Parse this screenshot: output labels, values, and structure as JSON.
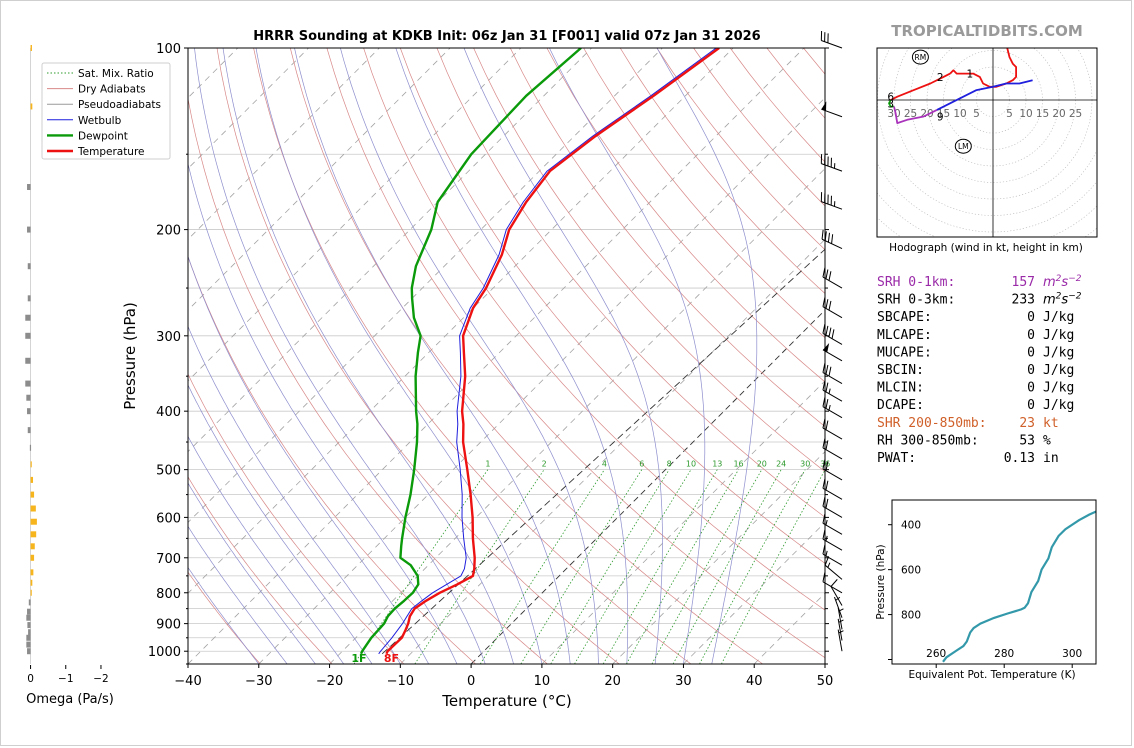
{
  "title": "HRRR Sounding at KDKB Init: 06z Jan 31 [F001] valid 07z Jan 31 2026",
  "watermark": "TROPICALTIDBITS.COM",
  "colors": {
    "temperature": "#ee1111",
    "dewpoint": "#0a9a0a",
    "wetbulb": "#1f1fdd",
    "dry": "#d88888",
    "moist": "#8e8ece",
    "mix": "#2e9a2e",
    "isotherm": "#9a9a9a",
    "omega_pos": "#f7b51d",
    "omega_neg": "#8c8c8c",
    "srh1": "#9a2aa8",
    "shr": "#d0602a",
    "hodo_red": "#ee1111",
    "hodo_blue": "#1f1fdd",
    "hodo_purple": "#aa33bb",
    "hodo_green": "#11aa11",
    "theta": "#3399aa"
  },
  "chart_data": [
    {
      "type": "line",
      "name": "skewt",
      "title": "HRRR Sounding at KDKB Init: 06z Jan 31 [F001] valid 07z Jan 31 2026",
      "xlabel": "Temperature (°C)",
      "ylabel": "Pressure (hPa)",
      "xlim": [
        -40,
        50
      ],
      "ylim": [
        1050,
        100
      ],
      "log_scale_y": true,
      "grid": true,
      "x_ticks": [
        "−40",
        "−30",
        "−20",
        "−10",
        "0",
        "10",
        "20",
        "30",
        "40",
        "50"
      ],
      "y_ticks": [
        "100",
        "200",
        "300",
        "400",
        "500",
        "600",
        "700",
        "800",
        "900",
        "1000"
      ],
      "legend": {
        "position": "top-left",
        "entries": [
          "Sat. Mix. Ratio",
          "Dry Adiabats",
          "Pseudoadiabats",
          "Wetbulb",
          "Dewpoint",
          "Temperature"
        ]
      },
      "mixing_ratio_labels": [
        "1",
        "2",
        "4",
        "6",
        "8",
        "10",
        "13",
        "16",
        "20",
        "24",
        "30",
        "36"
      ],
      "surface_labels": {
        "dewpoint": "1F",
        "temperature": "8F"
      },
      "series": [
        {
          "name": "Temperature",
          "points": [
            [
              1010,
              -13.4
            ],
            [
              1000,
              -13.6
            ],
            [
              950,
              -13.5
            ],
            [
              925,
              -14
            ],
            [
              900,
              -14.6
            ],
            [
              875,
              -15.4
            ],
            [
              850,
              -15.8
            ],
            [
              825,
              -15.3
            ],
            [
              800,
              -14.5
            ],
            [
              775,
              -13.2
            ],
            [
              750,
              -12.2
            ],
            [
              730,
              -13
            ],
            [
              700,
              -14.5
            ],
            [
              650,
              -17.5
            ],
            [
              600,
              -20.5
            ],
            [
              550,
              -24
            ],
            [
              500,
              -28
            ],
            [
              450,
              -32.5
            ],
            [
              420,
              -35
            ],
            [
              400,
              -37
            ],
            [
              350,
              -41.5
            ],
            [
              320,
              -45
            ],
            [
              300,
              -47.5
            ],
            [
              270,
              -50
            ],
            [
              250,
              -51
            ],
            [
              220,
              -53.5
            ],
            [
              200,
              -56
            ],
            [
              180,
              -57.5
            ],
            [
              160,
              -58.5
            ],
            [
              140,
              -57
            ],
            [
              120,
              -54.5
            ],
            [
              100,
              -52
            ]
          ]
        },
        {
          "name": "Dewpoint",
          "points": [
            [
              1010,
              -17
            ],
            [
              1000,
              -17.2
            ],
            [
              950,
              -17.8
            ],
            [
              900,
              -18
            ],
            [
              875,
              -18.5
            ],
            [
              850,
              -18.6
            ],
            [
              825,
              -18.4
            ],
            [
              800,
              -18.3
            ],
            [
              775,
              -18.7
            ],
            [
              750,
              -20
            ],
            [
              720,
              -22.5
            ],
            [
              700,
              -25
            ],
            [
              670,
              -26.5
            ],
            [
              650,
              -27.5
            ],
            [
              600,
              -30
            ],
            [
              550,
              -32.5
            ],
            [
              500,
              -35.5
            ],
            [
              450,
              -39
            ],
            [
              420,
              -41.5
            ],
            [
              400,
              -43.5
            ],
            [
              350,
              -48.5
            ],
            [
              320,
              -51.5
            ],
            [
              300,
              -53.5
            ],
            [
              280,
              -57
            ],
            [
              260,
              -60
            ],
            [
              250,
              -61.5
            ],
            [
              230,
              -64
            ],
            [
              200,
              -67
            ],
            [
              180,
              -70
            ],
            [
              150,
              -72
            ],
            [
              120,
              -72.5
            ],
            [
              100,
              -71.5
            ]
          ]
        },
        {
          "name": "Wetbulb",
          "points": [
            [
              1010,
              -14.5
            ],
            [
              1000,
              -14.6
            ],
            [
              950,
              -14.9
            ],
            [
              900,
              -15.4
            ],
            [
              875,
              -15.8
            ],
            [
              850,
              -16.2
            ],
            [
              825,
              -15.9
            ],
            [
              800,
              -15.5
            ],
            [
              775,
              -14.7
            ],
            [
              750,
              -13.9
            ],
            [
              730,
              -14.4
            ],
            [
              700,
              -15.7
            ],
            [
              650,
              -18.8
            ],
            [
              600,
              -22
            ],
            [
              550,
              -25.2
            ],
            [
              500,
              -29
            ],
            [
              450,
              -33.4
            ],
            [
              420,
              -35.8
            ],
            [
              400,
              -37.7
            ],
            [
              350,
              -42.1
            ],
            [
              320,
              -45.5
            ],
            [
              300,
              -48
            ],
            [
              270,
              -50.4
            ],
            [
              250,
              -51.4
            ],
            [
              220,
              -53.9
            ],
            [
              200,
              -56.4
            ],
            [
              180,
              -57.9
            ],
            [
              160,
              -58.9
            ],
            [
              140,
              -57.4
            ],
            [
              120,
              -54.9
            ],
            [
              100,
              -52.4
            ]
          ]
        }
      ]
    },
    {
      "type": "bar",
      "name": "omega",
      "xlabel": "Omega (Pa/s)",
      "x_ticks": [
        "0",
        "−1",
        "−2"
      ],
      "xlim": [
        0.3,
        -2.2
      ],
      "bars": [
        [
          100,
          -0.04
        ],
        [
          125,
          -0.05
        ],
        [
          170,
          0.1
        ],
        [
          200,
          0.1
        ],
        [
          230,
          0.08
        ],
        [
          260,
          0.08
        ],
        [
          280,
          0.15
        ],
        [
          300,
          0.15
        ],
        [
          330,
          0.15
        ],
        [
          360,
          0.15
        ],
        [
          380,
          0.12
        ],
        [
          400,
          0.1
        ],
        [
          430,
          0.08
        ],
        [
          460,
          0.02
        ],
        [
          490,
          -0.03
        ],
        [
          520,
          -0.07
        ],
        [
          550,
          -0.1
        ],
        [
          580,
          -0.15
        ],
        [
          610,
          -0.18
        ],
        [
          640,
          -0.16
        ],
        [
          670,
          -0.12
        ],
        [
          700,
          -0.1
        ],
        [
          740,
          -0.08
        ],
        [
          770,
          -0.05
        ],
        [
          800,
          -0.02
        ],
        [
          830,
          0.05
        ],
        [
          860,
          0.1
        ],
        [
          880,
          0.12
        ],
        [
          905,
          0.09
        ],
        [
          930,
          0.07
        ],
        [
          950,
          0.12
        ],
        [
          975,
          0.12
        ],
        [
          1000,
          0.1
        ]
      ]
    },
    {
      "type": "line",
      "name": "hodograph",
      "title": "Hodograph (wind in kt, height in km)",
      "rings": [
        "30",
        "25",
        "20",
        "15",
        "10",
        "5",
        "5",
        "10",
        "15",
        "20",
        "25"
      ],
      "labels": [
        "1",
        "2",
        "3",
        "6",
        "9",
        "RM",
        "LM"
      ],
      "storm_motion": {
        "RM": [
          -22,
          13
        ],
        "LM": [
          -9,
          -14
        ]
      },
      "height_labels": [
        {
          "text": "1",
          "uv": [
            -7,
            8
          ]
        },
        {
          "text": "2",
          "uv": [
            -16,
            7
          ]
        },
        {
          "text": "3",
          "uv": [
            -31,
            -1
          ]
        },
        {
          "text": "6",
          "uv": [
            -31,
            1
          ]
        },
        {
          "text": "9",
          "uv": [
            -16,
            -5
          ]
        }
      ],
      "series": [
        {
          "name": "0-1km",
          "color": "red",
          "points": [
            [
              4,
              17
            ],
            [
              5,
              13
            ],
            [
              6,
              11
            ],
            [
              7,
              10
            ],
            [
              7,
              7
            ],
            [
              6,
              6
            ],
            [
              4,
              5
            ],
            [
              1,
              4
            ],
            [
              -1,
              4
            ],
            [
              -3,
              5
            ],
            [
              -4,
              7
            ],
            [
              -6,
              8
            ],
            [
              -8,
              8
            ],
            [
              -9,
              8
            ],
            [
              -11,
              8
            ],
            [
              -12,
              9
            ],
            [
              -13,
              8
            ]
          ]
        },
        {
          "name": "1-3km",
          "color": "red",
          "points": [
            [
              -13,
              8
            ],
            [
              -15,
              7
            ],
            [
              -19,
              5
            ],
            [
              -24,
              3
            ],
            [
              -29,
              1
            ],
            [
              -31,
              0
            ]
          ]
        },
        {
          "name": "3-6km",
          "color": "green",
          "points": [
            [
              -31,
              0
            ],
            [
              -31.5,
              -1
            ],
            [
              -31,
              -2
            ],
            [
              -30,
              -2
            ]
          ]
        },
        {
          "name": "6-9km",
          "color": "purple",
          "points": [
            [
              -30,
              -2
            ],
            [
              -29.5,
              -4
            ],
            [
              -29,
              -7
            ],
            [
              -26,
              -6
            ],
            [
              -21,
              -5
            ],
            [
              -17,
              -3
            ]
          ]
        },
        {
          "name": "9+km",
          "color": "blue",
          "points": [
            [
              -17,
              -3
            ],
            [
              -13,
              -1
            ],
            [
              -9,
              1
            ],
            [
              -5,
              3
            ],
            [
              0,
              4
            ],
            [
              4,
              5
            ],
            [
              8,
              5
            ],
            [
              12,
              6
            ]
          ]
        }
      ]
    },
    {
      "type": "line",
      "name": "theta-e",
      "xlabel": "Equivalent Pot. Temperature (K)",
      "ylabel": "Pressure (hPa)",
      "x_ticks": [
        "260",
        "280",
        "300"
      ],
      "y_ticks": [
        "400",
        "600",
        "800"
      ],
      "xlim": [
        247,
        307
      ],
      "ylim": [
        1020,
        290
      ],
      "series": [
        {
          "name": "theta-e",
          "points": [
            [
              262,
              1010
            ],
            [
              263,
              990
            ],
            [
              266,
              960
            ],
            [
              268,
              940
            ],
            [
              269,
              920
            ],
            [
              270,
              880
            ],
            [
              271,
              860
            ],
            [
              273,
              840
            ],
            [
              277,
              815
            ],
            [
              281,
              795
            ],
            [
              285,
              777
            ],
            [
              286,
              770
            ],
            [
              287,
              750
            ],
            [
              288,
              700
            ],
            [
              290,
              650
            ],
            [
              291,
              600
            ],
            [
              293,
              550
            ],
            [
              294,
              500
            ],
            [
              296,
              450
            ],
            [
              298,
              420
            ],
            [
              302,
              380
            ],
            [
              305,
              355
            ],
            [
              308,
              335
            ],
            [
              309,
              320
            ]
          ]
        }
      ]
    }
  ],
  "barbs": {
    "note_hidden": false,
    "levels": [
      [
        100,
        30,
        290
      ],
      [
        130,
        50,
        290
      ],
      [
        160,
        45,
        290
      ],
      [
        185,
        45,
        290
      ],
      [
        215,
        40,
        295
      ],
      [
        250,
        30,
        300
      ],
      [
        280,
        30,
        300
      ],
      [
        310,
        40,
        300
      ],
      [
        330,
        50,
        300
      ],
      [
        360,
        30,
        300
      ],
      [
        385,
        25,
        300
      ],
      [
        410,
        25,
        300
      ],
      [
        445,
        20,
        300
      ],
      [
        480,
        20,
        300
      ],
      [
        520,
        20,
        300
      ],
      [
        560,
        20,
        300
      ],
      [
        600,
        20,
        300
      ],
      [
        640,
        15,
        300
      ],
      [
        680,
        15,
        300
      ],
      [
        720,
        15,
        300
      ],
      [
        760,
        15,
        310
      ],
      [
        800,
        10,
        300
      ],
      [
        840,
        10,
        330
      ],
      [
        880,
        5,
        340
      ],
      [
        920,
        5,
        350
      ],
      [
        960,
        5,
        350
      ],
      [
        1000,
        5,
        350
      ]
    ]
  },
  "params": [
    {
      "label": "SRH 0-1km:",
      "value": "157",
      "unit": "m2s-2",
      "unit_main": "m",
      "unit_sup1": "2",
      "unit_s": "s",
      "unit_sup2": "−2",
      "color": "srh1"
    },
    {
      "label": "SRH 0-3km:",
      "value": "233",
      "unit": "m2s-2",
      "unit_main": "m",
      "unit_sup1": "2",
      "unit_s": "s",
      "unit_sup2": "−2",
      "color": "black"
    },
    {
      "label": "SBCAPE:",
      "value": "0",
      "unit": "J/kg",
      "color": "black"
    },
    {
      "label": "MLCAPE:",
      "value": "0",
      "unit": "J/kg",
      "color": "black"
    },
    {
      "label": "MUCAPE:",
      "value": "0",
      "unit": "J/kg",
      "color": "black"
    },
    {
      "label": "SBCIN:",
      "value": "0",
      "unit": "J/kg",
      "color": "black"
    },
    {
      "label": "MLCIN:",
      "value": "0",
      "unit": "J/kg",
      "color": "black"
    },
    {
      "label": "DCAPE:",
      "value": "0",
      "unit": "J/kg",
      "color": "black"
    },
    {
      "label": "SHR 200-850mb:",
      "value": "23",
      "unit": "kt",
      "color": "shr"
    },
    {
      "label": "RH 300-850mb:",
      "value": "53",
      "unit": "%",
      "color": "black"
    },
    {
      "label": "PWAT:",
      "value": "0.13",
      "unit": "in",
      "color": "black"
    }
  ]
}
